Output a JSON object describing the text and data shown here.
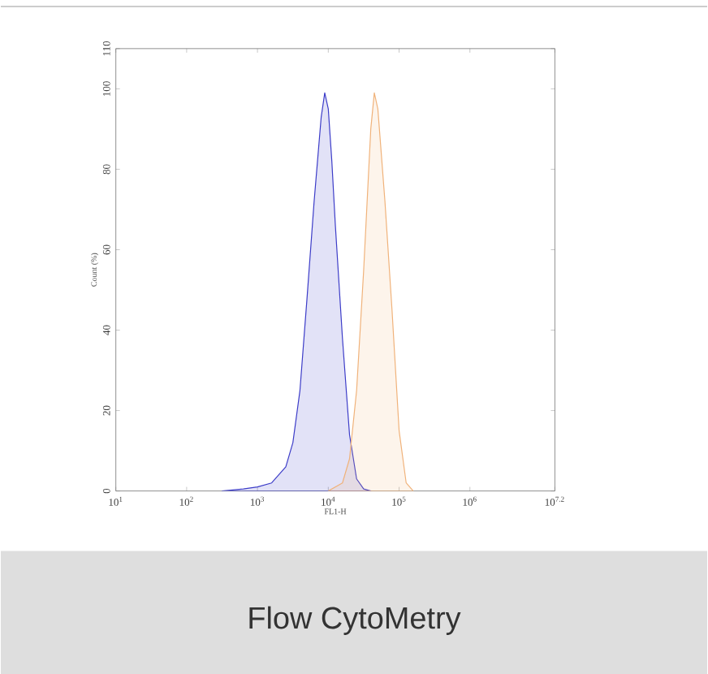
{
  "chart_data": {
    "type": "area",
    "xlabel": "FL1-H",
    "ylabel": "Count (%)",
    "annotations": [
      "Flow CytoMetry"
    ],
    "log": "x",
    "xlim": [
      10,
      15848932
    ],
    "ylim": [
      0,
      110
    ],
    "xticks": [
      {
        "value": 10,
        "label": "10$^{1}$"
      },
      {
        "value": 100,
        "label": "10$^{2}$"
      },
      {
        "value": 1000,
        "label": "10$^{3}$"
      },
      {
        "value": 10000,
        "label": "10$^{4}$"
      },
      {
        "value": 100000,
        "label": "10$^{5}$"
      },
      {
        "value": 1000000,
        "label": "10$^{6}$"
      },
      {
        "value": 15848932,
        "label": "10$^{7.2}$"
      }
    ],
    "yticks": [
      0,
      20,
      40,
      60,
      80,
      100,
      110
    ],
    "series": [
      {
        "color": "#3c3cc8",
        "x": [
          316,
          631,
          1000,
          1585,
          2512,
          3162,
          3981,
          5012,
          6310,
          7943,
          8913,
          10000,
          11220,
          12589,
          15849,
          19953,
          25119,
          31623,
          39811
        ],
        "values": [
          0,
          0.5,
          1,
          2,
          6,
          12,
          25,
          48,
          72,
          93,
          99,
          95,
          82,
          66,
          38,
          14,
          3,
          0.5,
          0
        ]
      },
      {
        "color": "#f0b27a",
        "x": [
          10000,
          15849,
          19953,
          25119,
          31623,
          39811,
          44668,
          50119,
          63096,
          79433,
          100000,
          125893,
          158489
        ],
        "values": [
          0,
          2,
          8,
          25,
          55,
          90,
          99,
          95,
          72,
          45,
          15,
          2,
          0
        ]
      }
    ]
  }
}
